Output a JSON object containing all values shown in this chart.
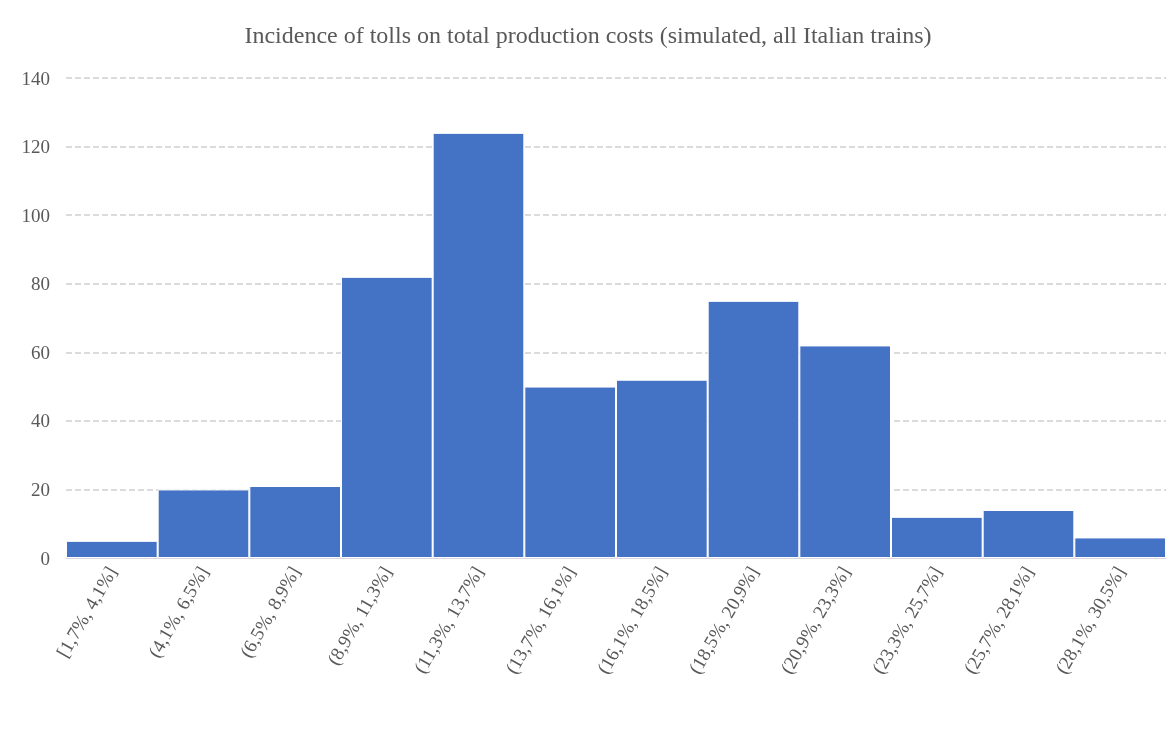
{
  "chart_data": {
    "type": "histogram",
    "title": "Incidence of tolls on total production costs (simulated, all Italian trains)",
    "categories": [
      "[1,7%, 4,1%]",
      "(4,1%, 6,5%]",
      "(6,5%, 8,9%]",
      "(8,9%, 11,3%]",
      "(11,3%, 13,7%]",
      "(13,7%, 16,1%]",
      "(16,1%, 18,5%]",
      "(18,5%, 20,9%]",
      "(20,9%, 23,3%]",
      "(23,3%, 25,7%]",
      "(25,7%, 28,1%]",
      "(28,1%, 30,5%]"
    ],
    "values": [
      5,
      20,
      21,
      82,
      124,
      50,
      52,
      75,
      62,
      12,
      14,
      6
    ],
    "color": "#4472c4",
    "ylim": [
      0,
      140
    ],
    "yticks": [
      0,
      20,
      40,
      60,
      80,
      100,
      120,
      140
    ],
    "grid": "y"
  }
}
